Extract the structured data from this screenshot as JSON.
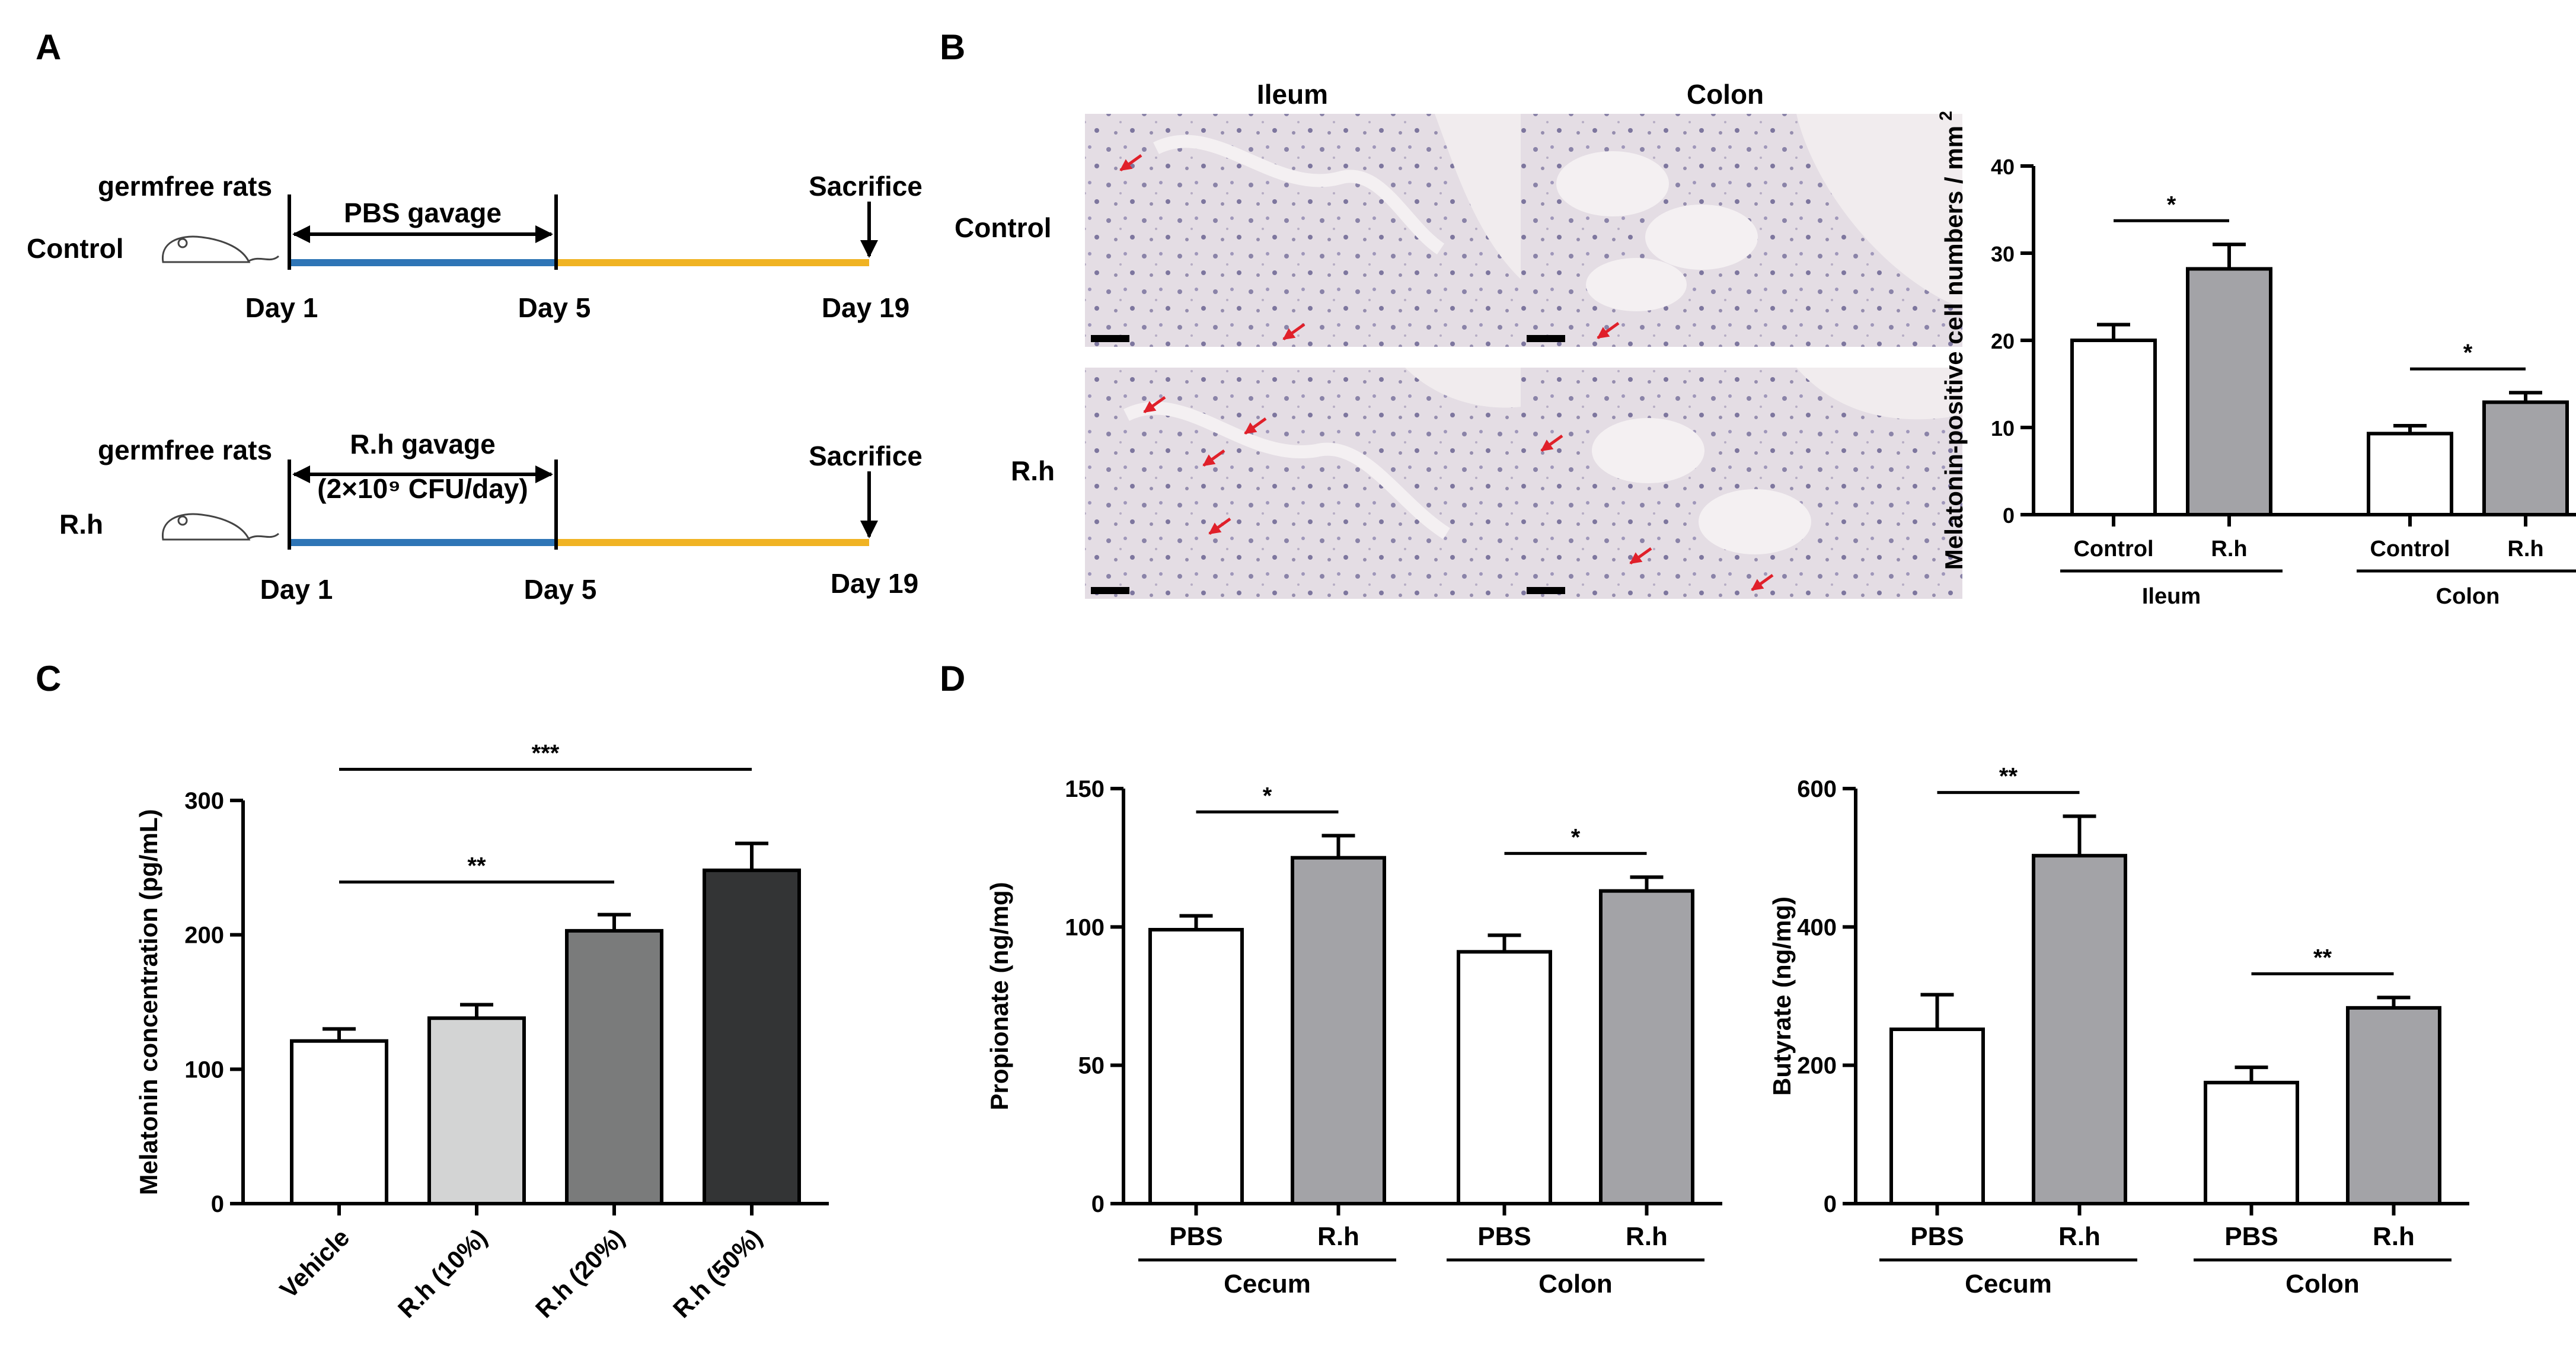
{
  "panels": {
    "a": "A",
    "b": "B",
    "c": "C",
    "d": "D"
  },
  "timeline": {
    "control": {
      "subject": "germfree rats",
      "group": "Control",
      "treatment": "PBS gavage",
      "treatment2": "",
      "end": "Sacrifice",
      "day_start": "Day 1",
      "day_mid": "Day 5",
      "day_end": "Day 19"
    },
    "rh": {
      "subject": "germfree rats",
      "group": "R.h",
      "treatment": "R.h gavage",
      "treatment2": "(2×10⁹ CFU/day)",
      "end": "Sacrifice",
      "day_start": "Day 1",
      "day_mid": "Day 5",
      "day_end": "Day 19"
    },
    "colors": {
      "gavage": "#2e75b6",
      "after": "#f0b323"
    }
  },
  "histology": {
    "col1": "Ileum",
    "col2": "Colon",
    "row1": "Control",
    "row2": "R.h",
    "arrow_color": "#e0202a"
  },
  "chart_data": [
    {
      "id": "melatonin_cells",
      "type": "bar",
      "title": "",
      "ylabel": "Melatonin-positive cell numbers / mm",
      "ylabel_sup": "2",
      "ylim": [
        0,
        40
      ],
      "yticks": [
        0,
        10,
        20,
        30,
        40
      ],
      "categories": [
        "Control",
        "R.h",
        "Control",
        "R.h"
      ],
      "groups": [
        {
          "label": "Ileum",
          "members": [
            0,
            1
          ]
        },
        {
          "label": "Colon",
          "members": [
            2,
            3
          ]
        }
      ],
      "values": [
        20,
        28.2,
        9.3,
        12.9
      ],
      "errors": [
        1.8,
        2.8,
        0.9,
        1.1
      ],
      "colors": [
        "#ffffff",
        "#a3a3a7",
        "#ffffff",
        "#a3a3a7"
      ],
      "significance": [
        {
          "from": 0,
          "to": 1,
          "label": "*"
        },
        {
          "from": 2,
          "to": 3,
          "label": "*"
        }
      ]
    },
    {
      "id": "melatonin_conc",
      "type": "bar",
      "title": "",
      "ylabel": "Melatonin concentration (pg/mL)",
      "ylim": [
        0,
        300
      ],
      "yticks": [
        0,
        100,
        200,
        300
      ],
      "categories": [
        "Vehicle",
        "R.h (10%)",
        "R.h (20%)",
        "R.h (50%)"
      ],
      "values": [
        121,
        138,
        203,
        248
      ],
      "errors": [
        9,
        10,
        12,
        20
      ],
      "colors": [
        "#ffffff",
        "#d3d4d4",
        "#7a7b7b",
        "#333435"
      ],
      "significance": [
        {
          "from": 0,
          "to": 2,
          "label": "**"
        },
        {
          "from": 0,
          "to": 3,
          "label": "***"
        }
      ]
    },
    {
      "id": "propionate",
      "type": "bar",
      "title": "",
      "ylabel": "Propionate (ng/mg)",
      "ylim": [
        0,
        150
      ],
      "yticks": [
        0,
        50,
        100,
        150
      ],
      "categories": [
        "PBS",
        "R.h",
        "PBS",
        "R.h"
      ],
      "groups": [
        {
          "label": "Cecum",
          "members": [
            0,
            1
          ]
        },
        {
          "label": "Colon",
          "members": [
            2,
            3
          ]
        }
      ],
      "values": [
        99,
        125,
        91,
        113
      ],
      "errors": [
        5,
        8,
        6,
        5
      ],
      "colors": [
        "#ffffff",
        "#a3a3a7",
        "#ffffff",
        "#a3a3a7"
      ],
      "significance": [
        {
          "from": 0,
          "to": 1,
          "label": "*"
        },
        {
          "from": 2,
          "to": 3,
          "label": "*"
        }
      ]
    },
    {
      "id": "butyrate",
      "type": "bar",
      "title": "",
      "ylabel": "Butyrate (ng/mg)",
      "ylim": [
        0,
        600
      ],
      "yticks": [
        0,
        200,
        400,
        600
      ],
      "categories": [
        "PBS",
        "R.h",
        "PBS",
        "R.h"
      ],
      "groups": [
        {
          "label": "Cecum",
          "members": [
            0,
            1
          ]
        },
        {
          "label": "Colon",
          "members": [
            2,
            3
          ]
        }
      ],
      "values": [
        252,
        503,
        175,
        283
      ],
      "errors": [
        50,
        57,
        22,
        15
      ],
      "colors": [
        "#ffffff",
        "#a3a3a7",
        "#ffffff",
        "#a3a3a7"
      ],
      "significance": [
        {
          "from": 0,
          "to": 1,
          "label": "**"
        },
        {
          "from": 2,
          "to": 3,
          "label": "**"
        }
      ]
    }
  ]
}
